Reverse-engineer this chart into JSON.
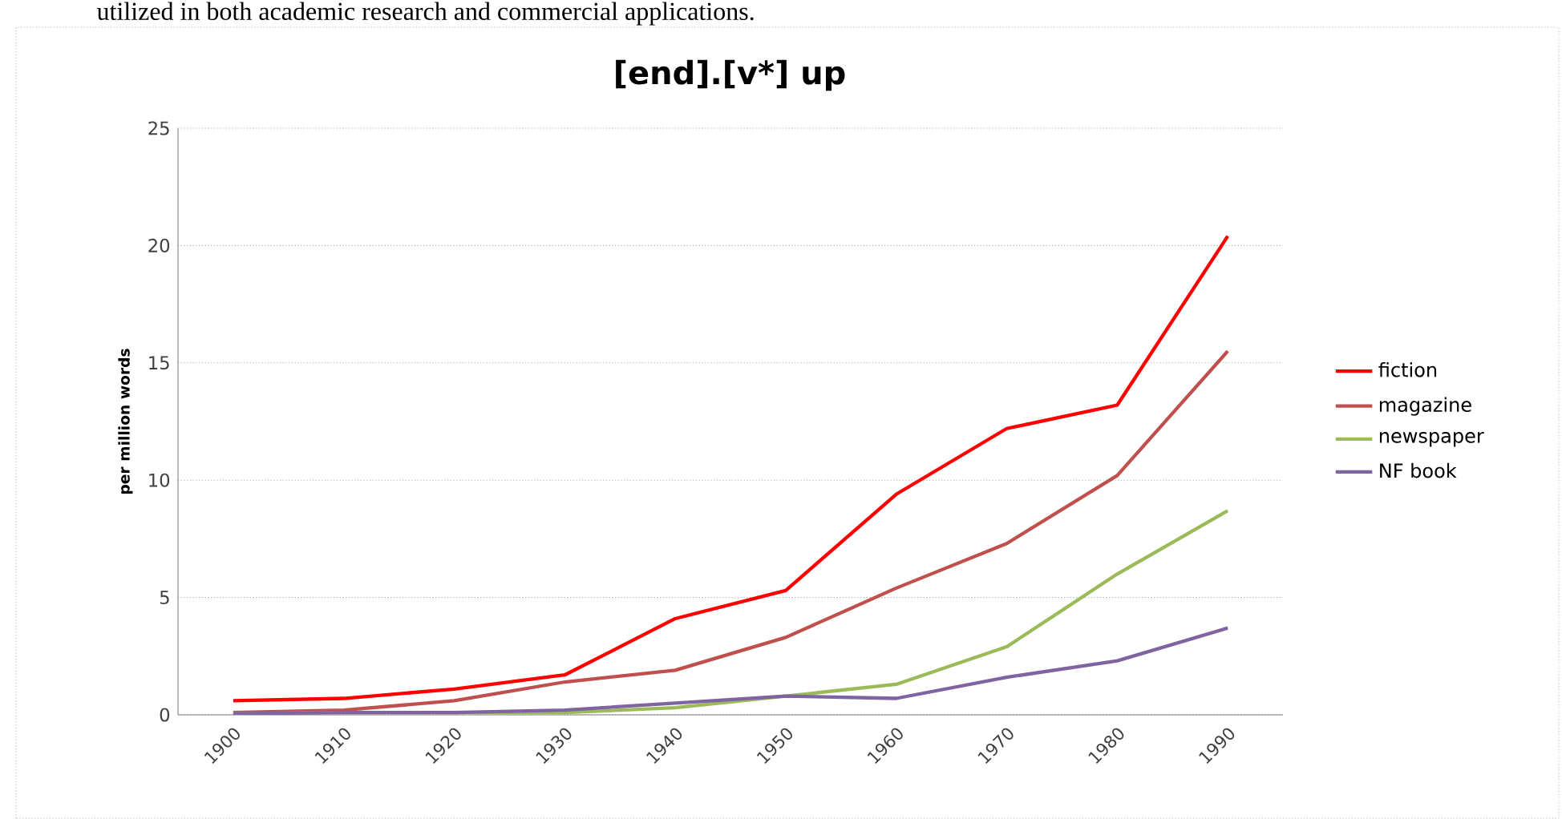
{
  "chart_data": {
    "type": "line",
    "title": "[end].[v*] up",
    "ylabel": "per million words",
    "annotations": [
      "utilized in both academic research and commercial applications."
    ],
    "categories": [
      "1900",
      "1910",
      "1920",
      "1930",
      "1940",
      "1950",
      "1960",
      "1970",
      "1980",
      "1990"
    ],
    "series": [
      {
        "name": "fiction",
        "color": "#ff0000",
        "values": [
          0.6,
          0.7,
          1.1,
          1.7,
          4.1,
          5.3,
          9.4,
          12.2,
          13.2,
          20.4
        ]
      },
      {
        "name": "magazine",
        "color": "#c0504d",
        "values": [
          0.1,
          0.2,
          0.6,
          1.4,
          1.9,
          3.3,
          5.4,
          7.3,
          10.2,
          15.5
        ]
      },
      {
        "name": "newspaper",
        "color": "#9bbb59",
        "values": [
          0.05,
          0.1,
          0.1,
          0.1,
          0.3,
          0.8,
          1.3,
          2.9,
          6.0,
          8.7
        ]
      },
      {
        "name": "NF book",
        "color": "#8064a2",
        "values": [
          0.05,
          0.1,
          0.1,
          0.2,
          0.5,
          0.8,
          0.7,
          1.6,
          2.3,
          3.7
        ]
      }
    ],
    "ylim": [
      0,
      25
    ],
    "yticks": [
      0,
      5,
      10,
      15,
      20,
      25
    ],
    "grid": "y",
    "legend": "right",
    "marker": "none",
    "line_style": "solid"
  }
}
